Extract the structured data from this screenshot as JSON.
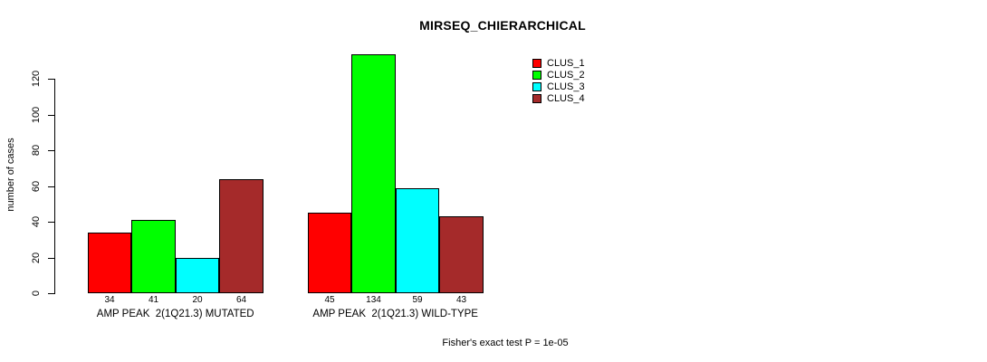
{
  "chart_data": {
    "type": "bar",
    "title": "MIRSEQ_CHIERARCHICAL",
    "ylabel": "number of cases",
    "annotation": "Fisher's exact test P = 1e-05",
    "yticks": [
      0,
      20,
      40,
      60,
      80,
      100,
      120
    ],
    "ylim": [
      0,
      134
    ],
    "grid": false,
    "legend_position": "top-right",
    "categories": [
      "AMP PEAK  2(1Q21.3) MUTATED",
      "AMP PEAK  2(1Q21.3) WILD-TYPE"
    ],
    "series": [
      {
        "name": "CLUS_1",
        "color": "#FF0000",
        "values": [
          34,
          45
        ]
      },
      {
        "name": "CLUS_2",
        "color": "#00FF00",
        "values": [
          41,
          134
        ]
      },
      {
        "name": "CLUS_3",
        "color": "#00FFFF",
        "values": [
          20,
          59
        ]
      },
      {
        "name": "CLUS_4",
        "color": "#A52A2A",
        "values": [
          64,
          43
        ]
      }
    ]
  }
}
